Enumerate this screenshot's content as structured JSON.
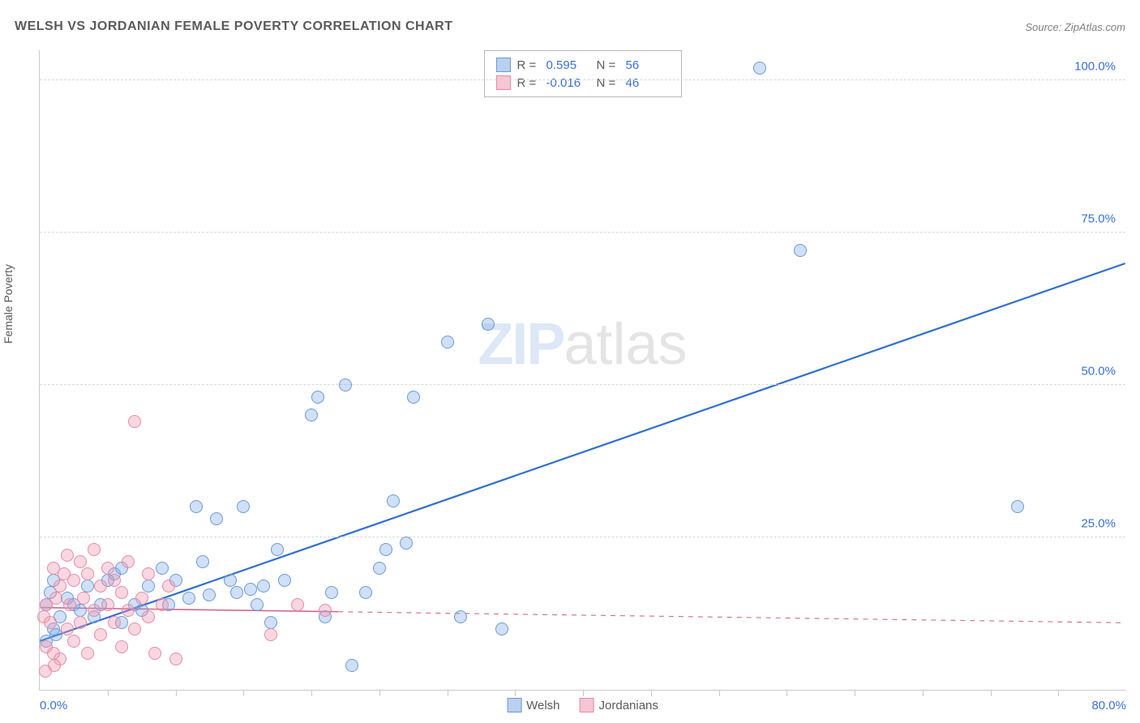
{
  "title": "WELSH VS JORDANIAN FEMALE POVERTY CORRELATION CHART",
  "source_label": "Source: ",
  "source_name": "ZipAtlas.com",
  "yaxis_label": "Female Poverty",
  "watermark_zip": "ZIP",
  "watermark_atlas": "atlas",
  "chart": {
    "type": "scatter",
    "background_color": "#ffffff",
    "grid_color": "#d8d8d8",
    "axis_color": "#c9c9c9",
    "tick_color": "#3a6fd8",
    "xlim": [
      0,
      80
    ],
    "ylim": [
      0,
      105
    ],
    "yticks": [
      {
        "v": 25,
        "label": "25.0%"
      },
      {
        "v": 50,
        "label": "50.0%"
      },
      {
        "v": 75,
        "label": "75.0%"
      },
      {
        "v": 100,
        "label": "100.0%"
      }
    ],
    "xticks_minor": [
      5,
      10,
      15,
      20,
      25,
      30,
      35,
      40,
      45,
      50,
      55,
      60,
      65,
      70,
      75
    ],
    "xtick_left": {
      "v": 0,
      "label": "0.0%"
    },
    "xtick_right": {
      "v": 80,
      "label": "80.0%"
    },
    "marker_radius": 8,
    "marker_border_width": 1.2,
    "series": [
      {
        "name": "Welsh",
        "fill": "rgba(120,165,230,0.35)",
        "stroke": "#6a9ad8",
        "swatch_fill": "#b9d0ef",
        "swatch_border": "#6a9ad8",
        "R_label": "R =",
        "R_value": "0.595",
        "N_label": "N =",
        "N_value": "56",
        "trend": {
          "x1": 0,
          "y1": 8,
          "x2": 80,
          "y2": 70,
          "solid_until_x": 80,
          "color": "#2f6fd0",
          "width": 2.2
        },
        "points": [
          [
            0.5,
            14
          ],
          [
            0.8,
            16
          ],
          [
            1,
            10
          ],
          [
            1,
            18
          ],
          [
            1.5,
            12
          ],
          [
            2,
            15
          ],
          [
            2.5,
            14
          ],
          [
            3,
            13
          ],
          [
            3.5,
            17
          ],
          [
            4,
            12
          ],
          [
            4.5,
            14
          ],
          [
            5,
            18
          ],
          [
            5.5,
            19
          ],
          [
            6,
            11
          ],
          [
            6,
            20
          ],
          [
            7,
            14
          ],
          [
            7.5,
            13
          ],
          [
            8,
            17
          ],
          [
            9,
            20
          ],
          [
            9.5,
            14
          ],
          [
            10,
            18
          ],
          [
            11,
            15
          ],
          [
            11.5,
            30
          ],
          [
            12,
            21
          ],
          [
            12.5,
            15.5
          ],
          [
            13,
            28
          ],
          [
            14,
            18
          ],
          [
            14.5,
            16
          ],
          [
            15,
            30
          ],
          [
            15.5,
            16.5
          ],
          [
            16,
            14
          ],
          [
            16.5,
            17
          ],
          [
            17,
            11
          ],
          [
            17.5,
            23
          ],
          [
            18,
            18
          ],
          [
            20,
            45
          ],
          [
            20.5,
            48
          ],
          [
            21,
            12
          ],
          [
            21.5,
            16
          ],
          [
            22.5,
            50
          ],
          [
            23,
            4
          ],
          [
            24,
            16
          ],
          [
            25,
            20
          ],
          [
            25.5,
            23
          ],
          [
            26,
            31
          ],
          [
            27,
            24
          ],
          [
            27.5,
            48
          ],
          [
            30,
            57
          ],
          [
            31,
            12
          ],
          [
            33,
            60
          ],
          [
            34,
            10
          ],
          [
            53,
            102
          ],
          [
            56,
            72
          ],
          [
            72,
            30
          ],
          [
            0.5,
            8
          ],
          [
            1.2,
            9
          ]
        ]
      },
      {
        "name": "Jordanians",
        "fill": "rgba(240,150,175,0.38)",
        "stroke": "#e78aa6",
        "swatch_fill": "#f5c6d4",
        "swatch_border": "#e78aa6",
        "R_label": "R =",
        "R_value": "-0.016",
        "N_label": "N =",
        "N_value": "46",
        "trend": {
          "x1": 0,
          "y1": 13.5,
          "x2": 80,
          "y2": 11,
          "solid_until_x": 22,
          "color": "#d46a8a",
          "width": 1.6
        },
        "points": [
          [
            0.3,
            12
          ],
          [
            0.5,
            7
          ],
          [
            0.5,
            14
          ],
          [
            0.8,
            11
          ],
          [
            1,
            20
          ],
          [
            1,
            6
          ],
          [
            1.2,
            15
          ],
          [
            1.5,
            17
          ],
          [
            1.5,
            5
          ],
          [
            1.8,
            19
          ],
          [
            2,
            10
          ],
          [
            2,
            22
          ],
          [
            2.2,
            14
          ],
          [
            2.5,
            8
          ],
          [
            2.5,
            18
          ],
          [
            3,
            11
          ],
          [
            3,
            21
          ],
          [
            3.2,
            15
          ],
          [
            3.5,
            6
          ],
          [
            3.5,
            19
          ],
          [
            4,
            13
          ],
          [
            4,
            23
          ],
          [
            4.5,
            9
          ],
          [
            4.5,
            17
          ],
          [
            5,
            14
          ],
          [
            5,
            20
          ],
          [
            5.5,
            11
          ],
          [
            5.5,
            18
          ],
          [
            6,
            7
          ],
          [
            6,
            16
          ],
          [
            6.5,
            13
          ],
          [
            6.5,
            21
          ],
          [
            7,
            10
          ],
          [
            7,
            44
          ],
          [
            7.5,
            15
          ],
          [
            8,
            12
          ],
          [
            8,
            19
          ],
          [
            8.5,
            6
          ],
          [
            9,
            14
          ],
          [
            9.5,
            17
          ],
          [
            10,
            5
          ],
          [
            17,
            9
          ],
          [
            19,
            14
          ],
          [
            21,
            13
          ],
          [
            0.4,
            3
          ],
          [
            1.1,
            4
          ]
        ]
      }
    ]
  },
  "legend_bottom": [
    {
      "label": "Welsh",
      "fill": "#b9d0ef",
      "border": "#6a9ad8"
    },
    {
      "label": "Jordanians",
      "fill": "#f5c6d4",
      "border": "#e78aa6"
    }
  ]
}
